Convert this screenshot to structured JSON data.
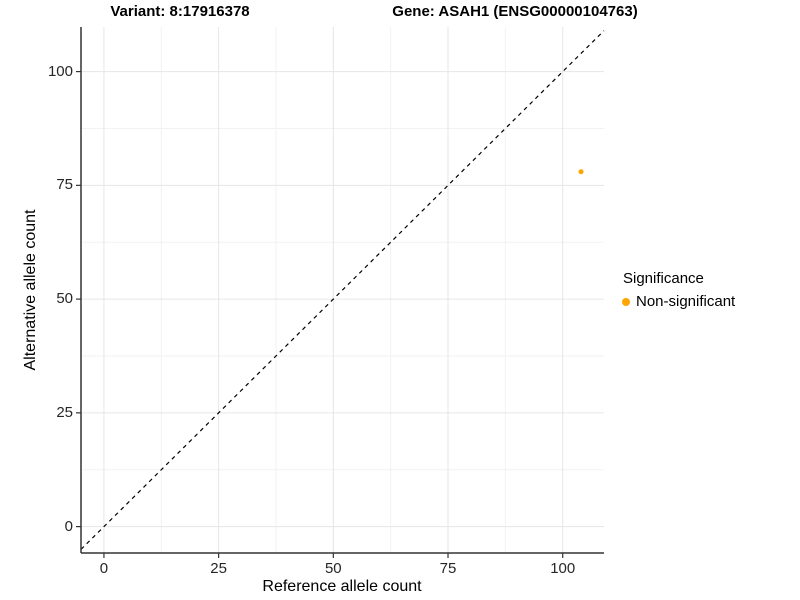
{
  "titles": {
    "variant": "Variant: 8:17916378",
    "gene": "Gene: ASAH1 (ENSG00000104763)"
  },
  "chart_data": {
    "type": "scatter",
    "title_left": "Variant: 8:17916378",
    "title_right": "Gene: ASAH1 (ENSG00000104763)",
    "xlabel": "Reference allele count",
    "ylabel": "Alternative allele count",
    "xlim": [
      -5,
      109
    ],
    "ylim": [
      -5.8,
      109.8
    ],
    "x_ticks": [
      0,
      25,
      50,
      75,
      100
    ],
    "y_ticks": [
      0,
      25,
      50,
      75,
      100
    ],
    "x_minor_gridlines": [
      12.5,
      37.5,
      62.5,
      87.5
    ],
    "y_minor_gridlines": [
      12.5,
      37.5,
      62.5,
      87.5
    ],
    "grid": true,
    "legend_position": "right",
    "series": [
      {
        "name": "Non-significant",
        "color": "#FFA500",
        "points": [
          {
            "x": 104,
            "y": 78
          }
        ]
      }
    ],
    "identity_line": {
      "type": "abline",
      "slope": 1,
      "intercept": 0,
      "style": "dashed",
      "color": "#000000"
    },
    "legend": {
      "title": "Significance",
      "entries": [
        {
          "label": "Non-significant",
          "color": "#FFA500"
        }
      ]
    },
    "colors": {
      "axis_line": "#333333",
      "major_gridline": "#e6e6e6",
      "minor_gridline": "#f2f2f2",
      "tick_mark": "#333333",
      "tick_text": "#262626"
    }
  }
}
